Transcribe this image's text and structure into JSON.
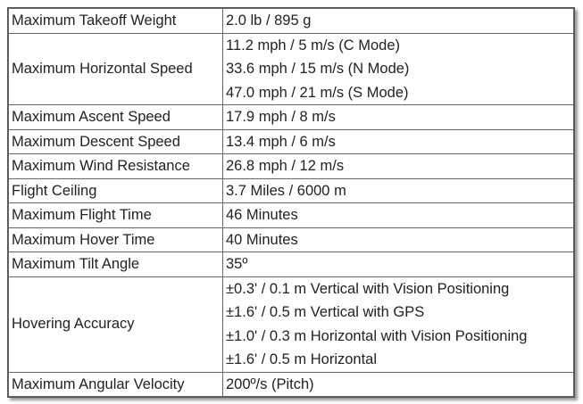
{
  "table": {
    "rows": [
      {
        "label": "Maximum Takeoff Weight",
        "values": [
          "2.0 lb / 895 g"
        ]
      },
      {
        "label": "Maximum Horizontal Speed",
        "values": [
          "11.2 mph / 5 m/s (C Mode)",
          "33.6 mph / 15 m/s (N Mode)",
          "47.0 mph / 21 m/s (S Mode)"
        ]
      },
      {
        "label": "Maximum Ascent Speed",
        "values": [
          "17.9 mph / 8 m/s"
        ]
      },
      {
        "label": "Maximum Descent Speed",
        "values": [
          "13.4 mph / 6 m/s"
        ]
      },
      {
        "label": "Maximum Wind Resistance",
        "values": [
          "26.8 mph / 12 m/s"
        ]
      },
      {
        "label": "Flight Ceiling",
        "values": [
          "3.7 Miles / 6000 m"
        ]
      },
      {
        "label": "Maximum Flight Time",
        "values": [
          "46 Minutes"
        ]
      },
      {
        "label": "Maximum Hover Time",
        "values": [
          "40 Minutes"
        ]
      },
      {
        "label": "Maximum Tilt Angle",
        "values": [
          "35º"
        ]
      },
      {
        "label": "Hovering Accuracy",
        "values": [
          "±0.3' / 0.1 m Vertical with Vision Positioning",
          "±1.6' / 0.5 m Vertical with GPS",
          "±1.0' / 0.3 m Horizontal with Vision Positioning",
          "±1.6' / 0.5 m Horizontal"
        ]
      },
      {
        "label": "Maximum Angular Velocity",
        "values": [
          "200º/s (Pitch)"
        ]
      }
    ]
  }
}
